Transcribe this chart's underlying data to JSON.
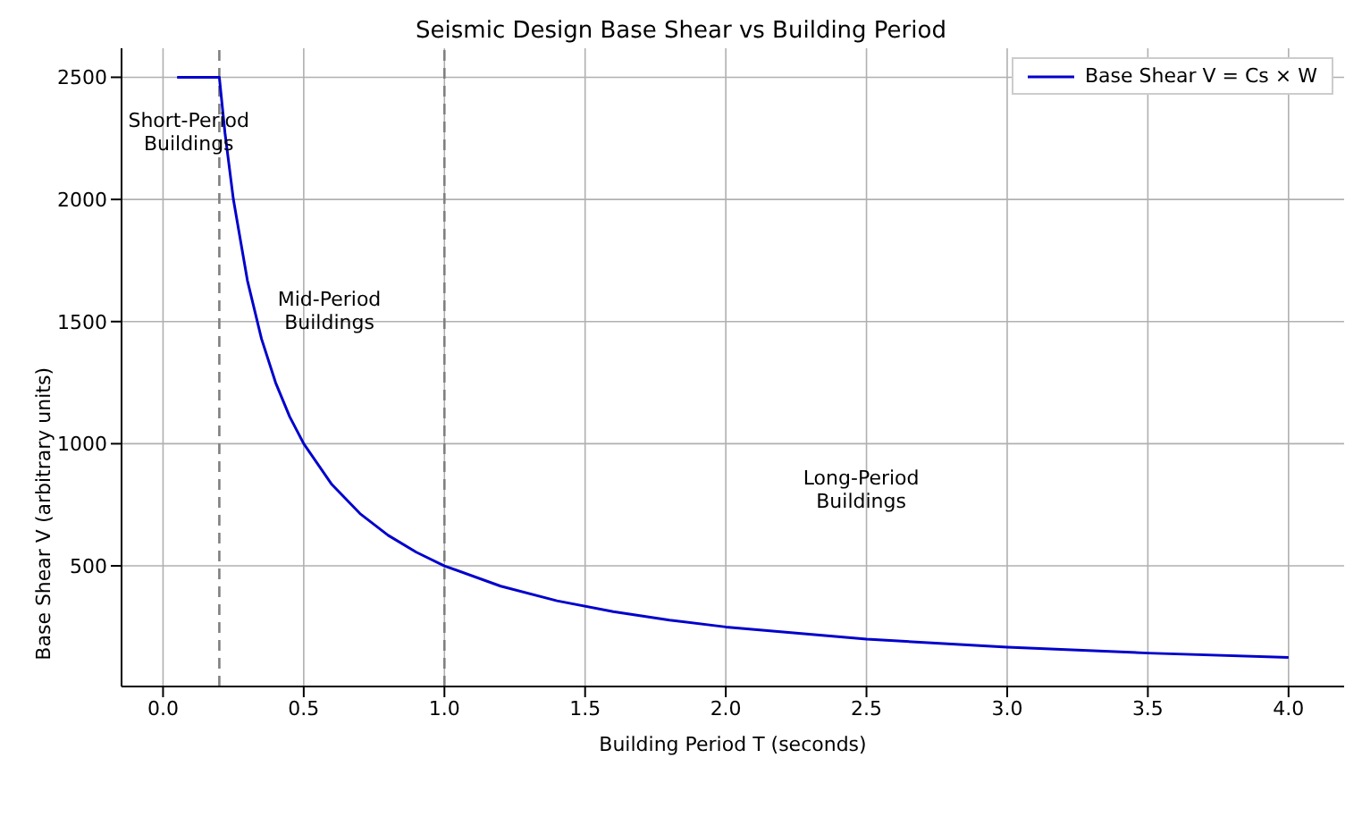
{
  "chart_data": {
    "type": "line",
    "title": "Seismic Design Base Shear vs Building Period",
    "xlabel": "Building Period T (seconds)",
    "ylabel": "Base Shear V (arbitrary units)",
    "x": [
      0.05,
      0.1,
      0.15,
      0.2,
      0.22,
      0.25,
      0.3,
      0.35,
      0.4,
      0.45,
      0.5,
      0.6,
      0.7,
      0.8,
      0.9,
      1.0,
      1.2,
      1.4,
      1.6,
      1.8,
      2.0,
      2.5,
      3.0,
      3.5,
      4.0
    ],
    "series": [
      {
        "name": "Base Shear V = Cs × W",
        "color": "#0000cc",
        "values": [
          2500,
          2500,
          2500,
          2500,
          2273,
          2000,
          1667,
          1429,
          1250,
          1111,
          1000,
          833,
          714,
          625,
          556,
          500,
          417,
          357,
          313,
          278,
          250,
          200,
          167,
          143,
          125
        ]
      }
    ],
    "xlim": [
      -0.1475,
      4.1975
    ],
    "ylim": [
      6.25,
      2618.75
    ],
    "xticks": [
      {
        "value": 0,
        "label": "0.0"
      },
      {
        "value": 0.5,
        "label": "0.5"
      },
      {
        "value": 1,
        "label": "1.0"
      },
      {
        "value": 1.5,
        "label": "1.5"
      },
      {
        "value": 2,
        "label": "2.0"
      },
      {
        "value": 2.5,
        "label": "2.5"
      },
      {
        "value": 3,
        "label": "3.0"
      },
      {
        "value": 3.5,
        "label": "3.5"
      },
      {
        "value": 4,
        "label": "4.0"
      }
    ],
    "yticks": [
      500,
      1000,
      1500,
      2000,
      2500
    ],
    "ref_lines": [
      {
        "axis": "x",
        "value": 0.2,
        "color": "#808080",
        "line_style": "dashed"
      },
      {
        "axis": "x",
        "value": 1.0,
        "color": "#808080",
        "line_style": "dashed"
      }
    ],
    "annotations": [
      "Short-Period\nBuildings",
      "Mid-Period\nBuildings",
      "Long-Period\nBuildings"
    ],
    "grid": true,
    "legend": "top right",
    "marker": "none",
    "line_style": "solid"
  }
}
